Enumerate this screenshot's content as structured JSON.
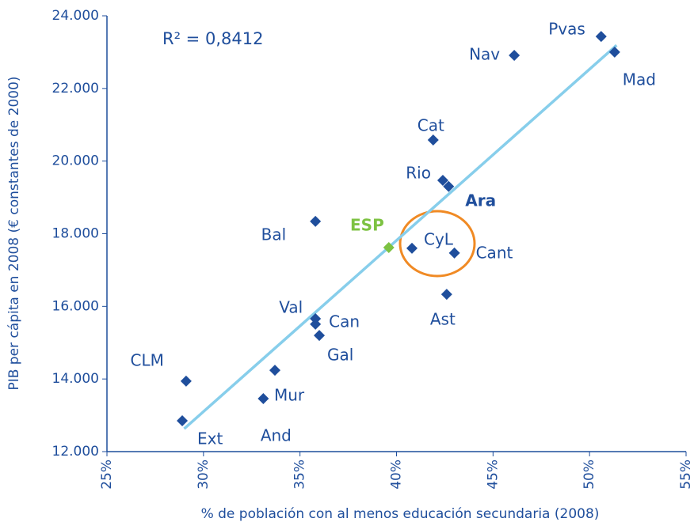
{
  "chart_data": {
    "type": "scatter",
    "annotation": "R² = 0,8412",
    "xlabel": "% de población con al menos educación secundaria (2008)",
    "ylabel": "PIB per cápita en 2008 (€ constantes de 2000)",
    "xlim": [
      25,
      55
    ],
    "ylim": [
      12000,
      24000
    ],
    "xticks": [
      {
        "value": 25,
        "label": "25%"
      },
      {
        "value": 30,
        "label": "30%"
      },
      {
        "value": 35,
        "label": "35%"
      },
      {
        "value": 40,
        "label": "40%"
      },
      {
        "value": 45,
        "label": "45%"
      },
      {
        "value": 50,
        "label": "50%"
      },
      {
        "value": 55,
        "label": "55%"
      }
    ],
    "yticks": [
      {
        "value": 12000,
        "label": "12.000"
      },
      {
        "value": 14000,
        "label": "14.000"
      },
      {
        "value": 16000,
        "label": "16.000"
      },
      {
        "value": 18000,
        "label": "18.000"
      },
      {
        "value": 20000,
        "label": "20.000"
      },
      {
        "value": 22000,
        "label": "22.000"
      },
      {
        "value": 24000,
        "label": "24.000"
      }
    ],
    "series": [
      {
        "color": "#1f4e9c",
        "labels": [
          "Pvas",
          "Mad",
          "Nav",
          "Cat",
          "Rio",
          "Ara",
          "Bal",
          "CyL",
          "Cant",
          "Ast",
          "Val",
          "Can",
          "Gal",
          "CLM",
          "Mur",
          "And",
          "Ext"
        ],
        "x": [
          50.6,
          51.3,
          46.1,
          41.9,
          42.4,
          42.7,
          35.8,
          40.8,
          43.0,
          42.6,
          35.8,
          35.8,
          36.0,
          29.1,
          33.7,
          33.1,
          28.9
        ],
        "values": [
          23430,
          23000,
          22910,
          20580,
          19470,
          19300,
          18340,
          17600,
          17470,
          16330,
          15660,
          15510,
          15200,
          13940,
          14240,
          13460,
          12850
        ]
      },
      {
        "color": "#7dc242",
        "labels": [
          "ESP"
        ],
        "x": [
          39.6
        ],
        "values": [
          17620
        ]
      }
    ],
    "trendline": {
      "color": "#87ceeb",
      "x": [
        29.0,
        51.4
      ],
      "y": [
        12630,
        23190
      ]
    }
  }
}
